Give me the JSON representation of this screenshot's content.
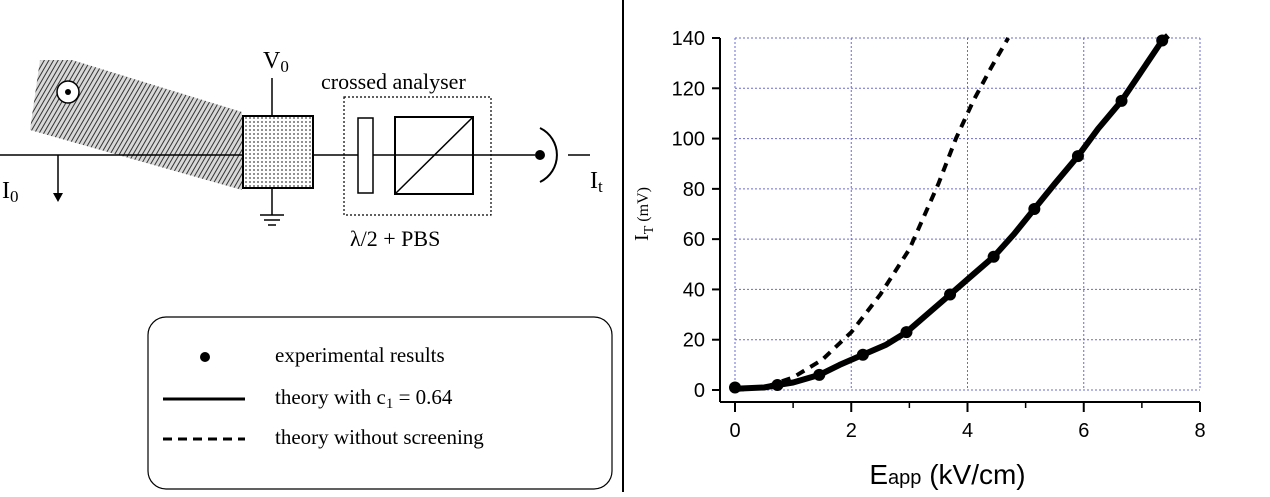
{
  "diagram": {
    "voltage_label": "V",
    "voltage_sub": "0",
    "analyser_label": "crossed analyser",
    "input_label": "I",
    "input_sub": "0",
    "output_label": "I",
    "output_sub": "t",
    "optics_label": "λ/2 + PBS"
  },
  "legend": {
    "items": [
      {
        "marker": "dot",
        "text": "experimental results"
      },
      {
        "marker": "solid",
        "text": "theory with c",
        "sub": "1",
        "suffix": " = 0.64"
      },
      {
        "marker": "dashed",
        "text": "theory without screening"
      }
    ]
  },
  "chart_data": {
    "type": "line",
    "xlabel_main": "E",
    "xlabel_sub": "app",
    "xlabel_units": " (kV/cm)",
    "ylabel_main": "I",
    "ylabel_sub": "T",
    "ylabel_units": " (mV)",
    "xlim": [
      0,
      8
    ],
    "ylim": [
      0,
      140
    ],
    "xticks": [
      0,
      2,
      4,
      6,
      8
    ],
    "yticks": [
      0,
      20,
      40,
      60,
      80,
      100,
      120,
      140
    ],
    "grid": true,
    "series": [
      {
        "id": "experimental",
        "style": "dots",
        "points": [
          [
            0,
            1
          ],
          [
            0.73,
            2
          ],
          [
            1.45,
            6
          ],
          [
            2.2,
            14
          ],
          [
            2.95,
            23
          ],
          [
            3.7,
            38
          ],
          [
            4.45,
            53
          ],
          [
            5.15,
            72
          ],
          [
            5.9,
            93
          ],
          [
            6.65,
            115
          ],
          [
            7.35,
            139
          ]
        ]
      },
      {
        "id": "theory",
        "style": "solid",
        "points": [
          [
            0,
            0.5
          ],
          [
            0.5,
            1
          ],
          [
            0.73,
            2
          ],
          [
            1,
            3
          ],
          [
            1.45,
            6
          ],
          [
            1.8,
            10
          ],
          [
            2.2,
            14
          ],
          [
            2.6,
            18
          ],
          [
            2.95,
            23
          ],
          [
            3.3,
            30
          ],
          [
            3.7,
            38
          ],
          [
            4.1,
            46
          ],
          [
            4.45,
            53
          ],
          [
            4.8,
            62
          ],
          [
            5.15,
            72
          ],
          [
            5.5,
            82
          ],
          [
            5.9,
            93
          ],
          [
            6.25,
            104
          ],
          [
            6.65,
            115
          ],
          [
            7,
            127
          ],
          [
            7.35,
            139
          ],
          [
            7.45,
            142
          ]
        ]
      },
      {
        "id": "no-screening",
        "style": "dashed",
        "points": [
          [
            0,
            0
          ],
          [
            0.5,
            1
          ],
          [
            1,
            5
          ],
          [
            1.5,
            12
          ],
          [
            2,
            23
          ],
          [
            2.5,
            38
          ],
          [
            3,
            56
          ],
          [
            3.5,
            82
          ],
          [
            3.8,
            100
          ],
          [
            4.1,
            115
          ],
          [
            4.4,
            128
          ],
          [
            4.7,
            140
          ]
        ]
      }
    ]
  }
}
